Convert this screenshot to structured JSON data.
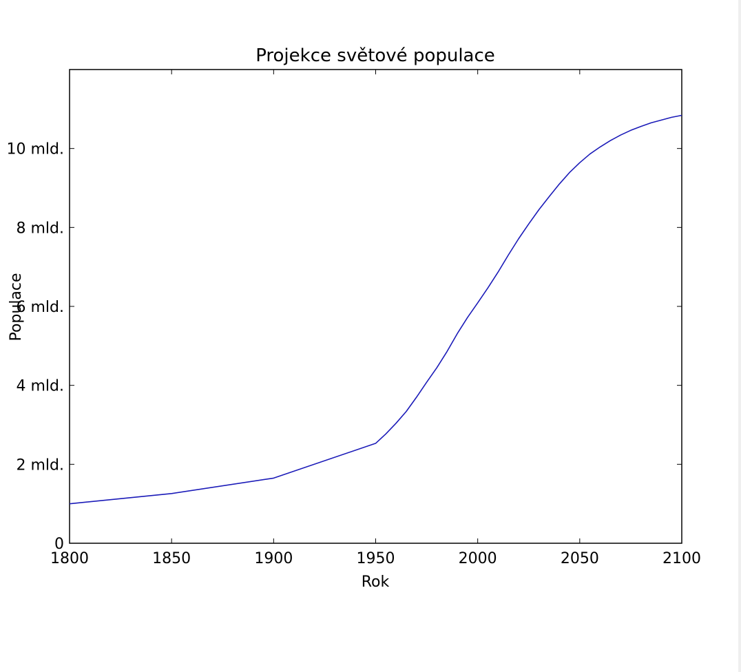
{
  "chart_data": {
    "type": "line",
    "title": "Projekce světové populace",
    "xlabel": "Rok",
    "ylabel": "Populace",
    "xlim": [
      1800,
      2100
    ],
    "ylim": [
      0,
      12
    ],
    "x_ticks": [
      {
        "value": 1800,
        "label": "1800"
      },
      {
        "value": 1850,
        "label": "1850"
      },
      {
        "value": 1900,
        "label": "1900"
      },
      {
        "value": 1950,
        "label": "1950"
      },
      {
        "value": 2000,
        "label": "2000"
      },
      {
        "value": 2050,
        "label": "2050"
      },
      {
        "value": 2100,
        "label": "2100"
      }
    ],
    "y_ticks": [
      {
        "value": 0,
        "label": "0"
      },
      {
        "value": 2,
        "label": "2 mld."
      },
      {
        "value": 4,
        "label": "4 mld."
      },
      {
        "value": 6,
        "label": "6 mld."
      },
      {
        "value": 8,
        "label": "8 mld."
      },
      {
        "value": 10,
        "label": "10 mld."
      }
    ],
    "grid": false,
    "line_color": "#1a1ab8",
    "series": [
      {
        "x": [
          1800,
          1850,
          1900,
          1950,
          1955,
          1960,
          1965,
          1970,
          1975,
          1980,
          1985,
          1990,
          1995,
          2000,
          2005,
          2010,
          2015,
          2020,
          2025,
          2030,
          2035,
          2040,
          2045,
          2050,
          2055,
          2060,
          2065,
          2070,
          2075,
          2080,
          2085,
          2090,
          2095,
          2100
        ],
        "values": [
          1.0,
          1.26,
          1.65,
          2.53,
          2.77,
          3.04,
          3.34,
          3.7,
          4.08,
          4.45,
          4.86,
          5.31,
          5.72,
          6.09,
          6.47,
          6.87,
          7.3,
          7.71,
          8.09,
          8.45,
          8.78,
          9.1,
          9.39,
          9.64,
          9.86,
          10.04,
          10.2,
          10.34,
          10.46,
          10.56,
          10.65,
          10.72,
          10.79,
          10.84
        ]
      }
    ]
  }
}
